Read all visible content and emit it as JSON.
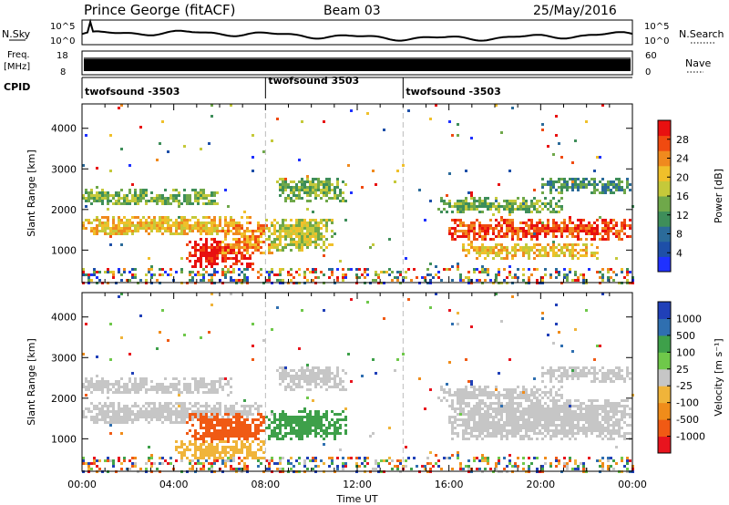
{
  "header": {
    "station": "Prince George (fitACF)",
    "beam": "Beam 03",
    "date": "25/May/2016"
  },
  "status": {
    "nsky_label": "N.Sky",
    "nsky_ticks": [
      "10^5",
      "10^0"
    ],
    "nsearch_label": "N.Search",
    "nsearch_ticks": [
      "10^5",
      "10^0"
    ],
    "freq_label_line1": "Freq.",
    "freq_label_line2": "[MHz]",
    "freq_ticks": [
      "18",
      "8"
    ],
    "nave_label": "Nave",
    "nave_ticks": [
      "60",
      "0"
    ],
    "cpid_label": "CPID",
    "cpid_segments": [
      {
        "label": "twofsound -3503",
        "start_hour": 0
      },
      {
        "label": "twofsound 3503",
        "start_hour": 8
      },
      {
        "label": "twofsound -3503",
        "start_hour": 14
      }
    ]
  },
  "colors": {
    "power": [
      "#1f31ff",
      "#1e4fa8",
      "#2b6b9a",
      "#3e8e5a",
      "#6fa84a",
      "#c5c93a",
      "#f0c02a",
      "#f08a1e",
      "#f04a10",
      "#e81010"
    ],
    "velocity": [
      "#e8141e",
      "#f05a14",
      "#f08c1a",
      "#f0b43a",
      "#c6c6c6",
      "#6fc84a",
      "#3ea04a",
      "#2f6fb0",
      "#2040b8"
    ]
  },
  "chart_data": [
    {
      "type": "heatmap",
      "panel": "power",
      "xlabel": "",
      "ylabel": "Slant Range [km]",
      "xlim": [
        0,
        24
      ],
      "ylim": [
        200,
        4600
      ],
      "yticks": [
        "4000",
        "3000",
        "2000",
        "1000"
      ],
      "colorbar_label": "Power [dB]",
      "colorbar_ticks": [
        "28",
        "24",
        "20",
        "16",
        "12",
        "8",
        "4"
      ],
      "regions": [
        {
          "t0": 0.0,
          "t1": 7.5,
          "r0": 1350,
          "r1": 1850,
          "level": 6
        },
        {
          "t0": 0.0,
          "t1": 6.0,
          "r0": 2100,
          "r1": 2500,
          "level": 4
        },
        {
          "t0": 4.5,
          "t1": 7.5,
          "r0": 600,
          "r1": 1300,
          "level": 9
        },
        {
          "t0": 6.0,
          "t1": 8.5,
          "r0": 900,
          "r1": 1700,
          "level": 7
        },
        {
          "t0": 8.0,
          "t1": 11.0,
          "r0": 1000,
          "r1": 1800,
          "level": 5
        },
        {
          "t0": 8.5,
          "t1": 11.5,
          "r0": 2200,
          "r1": 2800,
          "level": 4
        },
        {
          "t0": 16.0,
          "t1": 24.0,
          "r0": 1250,
          "r1": 1750,
          "level": 8
        },
        {
          "t0": 16.5,
          "t1": 22.5,
          "r0": 800,
          "r1": 1200,
          "level": 6
        },
        {
          "t0": 15.5,
          "t1": 21.0,
          "r0": 1900,
          "r1": 2300,
          "level": 4
        },
        {
          "t0": 20.0,
          "t1": 24.0,
          "r0": 2400,
          "r1": 2800,
          "level": 3
        }
      ]
    },
    {
      "type": "heatmap",
      "panel": "velocity",
      "xlabel": "Time UT",
      "ylabel": "Slant Range [km]",
      "xlim": [
        0,
        24
      ],
      "ylim": [
        200,
        4600
      ],
      "xticks": [
        "00:00",
        "04:00",
        "08:00",
        "12:00",
        "16:00",
        "20:00",
        "00:00"
      ],
      "yticks": [
        "4000",
        "3000",
        "2000",
        "1000"
      ],
      "colorbar_label": "Velocity [m s⁻¹]",
      "colorbar_ticks": [
        "1000",
        "500",
        "100",
        "25",
        "-25",
        "-100",
        "-500",
        "-1000"
      ],
      "regions": [
        {
          "t0": 0.0,
          "t1": 8.0,
          "r0": 1350,
          "r1": 1900,
          "level": 4
        },
        {
          "t0": 0.0,
          "t1": 6.5,
          "r0": 2100,
          "r1": 2500,
          "level": 4
        },
        {
          "t0": 4.5,
          "t1": 8.0,
          "r0": 900,
          "r1": 1650,
          "level": 1
        },
        {
          "t0": 4.0,
          "t1": 8.0,
          "r0": 500,
          "r1": 950,
          "level": 3
        },
        {
          "t0": 8.0,
          "t1": 11.5,
          "r0": 1000,
          "r1": 1700,
          "level": 6
        },
        {
          "t0": 8.5,
          "t1": 11.5,
          "r0": 2200,
          "r1": 2800,
          "level": 4
        },
        {
          "t0": 16.0,
          "t1": 24.0,
          "r0": 1000,
          "r1": 2000,
          "level": 4
        },
        {
          "t0": 15.5,
          "t1": 21.0,
          "r0": 1900,
          "r1": 2300,
          "level": 4
        },
        {
          "t0": 20.0,
          "t1": 24.0,
          "r0": 2400,
          "r1": 2800,
          "level": 4
        }
      ]
    }
  ]
}
